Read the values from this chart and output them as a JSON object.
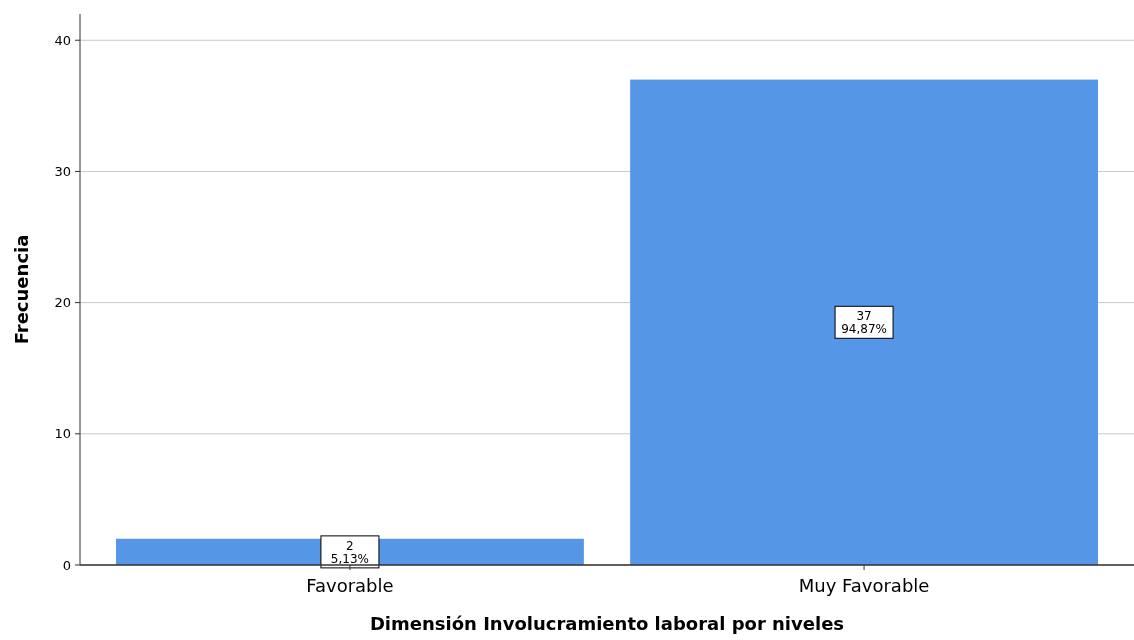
{
  "chart_data": {
    "type": "bar",
    "xlabel": "Dimensión Involucramiento laboral por niveles",
    "ylabel": "Frecuencia",
    "categories": [
      "Favorable",
      "Muy Favorable"
    ],
    "values": [
      2,
      37
    ],
    "color": "#5596e6",
    "value_labels": [
      "2\n5,13%",
      "37\n94,87%"
    ],
    "ylim": [
      0,
      42
    ],
    "yticks": [
      0,
      10,
      20,
      30,
      40
    ],
    "grid": "y"
  }
}
